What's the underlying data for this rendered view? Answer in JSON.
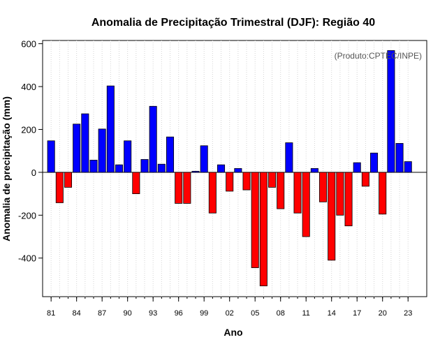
{
  "chart_data": {
    "type": "bar",
    "title": "Anomalia de Precipitação Trimestral (DJF): Região 40",
    "xlabel": "Ano",
    "ylabel": "Anomalia de precipitação (mm)",
    "annotation": "(Produto:CPTEC/INPE)",
    "ylim": [
      -580,
      615
    ],
    "yticks": [
      -400,
      -200,
      0,
      200,
      400,
      600
    ],
    "xlim": [
      80.0,
      125.2
    ],
    "xticks": [
      81,
      84,
      87,
      90,
      93,
      96,
      99,
      102,
      105,
      108,
      111,
      114,
      117,
      120,
      123
    ],
    "xtick_labels": [
      "81",
      "84",
      "87",
      "90",
      "93",
      "96",
      "99",
      "02",
      "05",
      "08",
      "11",
      "14",
      "17",
      "20",
      "23"
    ],
    "grid": true,
    "positive_color": "#0000ff",
    "negative_color": "#ff0000",
    "categories": [
      "1981",
      "1982",
      "1983",
      "1984",
      "1985",
      "1986",
      "1987",
      "1988",
      "1989",
      "1990",
      "1991",
      "1992",
      "1993",
      "1994",
      "1995",
      "1996",
      "1997",
      "1998",
      "1999",
      "2000",
      "2001",
      "2002",
      "2003",
      "2004",
      "2005",
      "2006",
      "2007",
      "2008",
      "2009",
      "2010",
      "2011",
      "2012",
      "2013",
      "2014",
      "2015",
      "2016",
      "2017",
      "2018",
      "2019",
      "2020",
      "2021",
      "2022",
      "2023"
    ],
    "values": [
      147,
      -142,
      -70,
      225,
      273,
      57,
      202,
      403,
      35,
      147,
      -100,
      60,
      308,
      38,
      165,
      -145,
      -145,
      5,
      124,
      -190,
      35,
      -88,
      18,
      -82,
      -445,
      -530,
      -70,
      -170,
      138,
      -190,
      -300,
      18,
      -138,
      -410,
      -200,
      -250,
      45,
      -65,
      90,
      -195,
      568,
      135,
      50
    ]
  }
}
